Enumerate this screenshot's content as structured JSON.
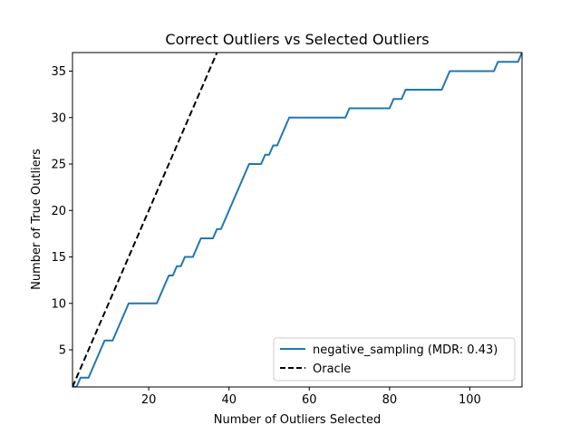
{
  "chart_data": {
    "type": "line",
    "title": "Correct Outliers vs Selected Outliers",
    "xlabel": "Number of Outliers Selected",
    "ylabel": "Number of True Outliers",
    "xlim": [
      1,
      113
    ],
    "ylim": [
      1,
      37
    ],
    "xticks": [
      20,
      40,
      60,
      80,
      100
    ],
    "yticks": [
      5,
      10,
      15,
      20,
      25,
      30,
      35
    ],
    "grid": false,
    "legend_position": "bottom-right",
    "series": [
      {
        "name": "negative_sampling (MDR: 0.43)",
        "color": "#1f77b4",
        "style": "solid",
        "points": [
          [
            1,
            1
          ],
          [
            2,
            1
          ],
          [
            3,
            2
          ],
          [
            4,
            2
          ],
          [
            5,
            2
          ],
          [
            6,
            3
          ],
          [
            7,
            4
          ],
          [
            8,
            5
          ],
          [
            9,
            6
          ],
          [
            10,
            6
          ],
          [
            11,
            6
          ],
          [
            12,
            7
          ],
          [
            13,
            8
          ],
          [
            14,
            9
          ],
          [
            15,
            10
          ],
          [
            16,
            10
          ],
          [
            17,
            10
          ],
          [
            18,
            10
          ],
          [
            19,
            10
          ],
          [
            20,
            10
          ],
          [
            21,
            10
          ],
          [
            22,
            10
          ],
          [
            23,
            11
          ],
          [
            24,
            12
          ],
          [
            25,
            13
          ],
          [
            26,
            13
          ],
          [
            27,
            14
          ],
          [
            28,
            14
          ],
          [
            29,
            15
          ],
          [
            30,
            15
          ],
          [
            31,
            15
          ],
          [
            32,
            16
          ],
          [
            33,
            17
          ],
          [
            34,
            17
          ],
          [
            35,
            17
          ],
          [
            36,
            17
          ],
          [
            37,
            18
          ],
          [
            38,
            18
          ],
          [
            39,
            19
          ],
          [
            40,
            20
          ],
          [
            41,
            21
          ],
          [
            42,
            22
          ],
          [
            43,
            23
          ],
          [
            44,
            24
          ],
          [
            45,
            25
          ],
          [
            46,
            25
          ],
          [
            47,
            25
          ],
          [
            48,
            25
          ],
          [
            49,
            26
          ],
          [
            50,
            26
          ],
          [
            51,
            27
          ],
          [
            52,
            27
          ],
          [
            53,
            28
          ],
          [
            54,
            29
          ],
          [
            55,
            30
          ],
          [
            56,
            30
          ],
          [
            57,
            30
          ],
          [
            58,
            30
          ],
          [
            59,
            30
          ],
          [
            60,
            30
          ],
          [
            61,
            30
          ],
          [
            62,
            30
          ],
          [
            63,
            30
          ],
          [
            64,
            30
          ],
          [
            65,
            30
          ],
          [
            66,
            30
          ],
          [
            67,
            30
          ],
          [
            68,
            30
          ],
          [
            69,
            30
          ],
          [
            70,
            31
          ],
          [
            71,
            31
          ],
          [
            72,
            31
          ],
          [
            73,
            31
          ],
          [
            74,
            31
          ],
          [
            75,
            31
          ],
          [
            76,
            31
          ],
          [
            77,
            31
          ],
          [
            78,
            31
          ],
          [
            79,
            31
          ],
          [
            80,
            31
          ],
          [
            81,
            32
          ],
          [
            82,
            32
          ],
          [
            83,
            32
          ],
          [
            84,
            33
          ],
          [
            85,
            33
          ],
          [
            86,
            33
          ],
          [
            87,
            33
          ],
          [
            88,
            33
          ],
          [
            89,
            33
          ],
          [
            90,
            33
          ],
          [
            91,
            33
          ],
          [
            92,
            33
          ],
          [
            93,
            33
          ],
          [
            94,
            34
          ],
          [
            95,
            35
          ],
          [
            96,
            35
          ],
          [
            97,
            35
          ],
          [
            98,
            35
          ],
          [
            99,
            35
          ],
          [
            100,
            35
          ],
          [
            101,
            35
          ],
          [
            102,
            35
          ],
          [
            103,
            35
          ],
          [
            104,
            35
          ],
          [
            105,
            35
          ],
          [
            106,
            35
          ],
          [
            107,
            36
          ],
          [
            108,
            36
          ],
          [
            109,
            36
          ],
          [
            110,
            36
          ],
          [
            111,
            36
          ],
          [
            112,
            36
          ],
          [
            113,
            37
          ]
        ]
      },
      {
        "name": "Oracle",
        "color": "#000000",
        "style": "dashed",
        "points": [
          [
            1,
            1
          ],
          [
            37,
            37
          ]
        ]
      }
    ]
  }
}
